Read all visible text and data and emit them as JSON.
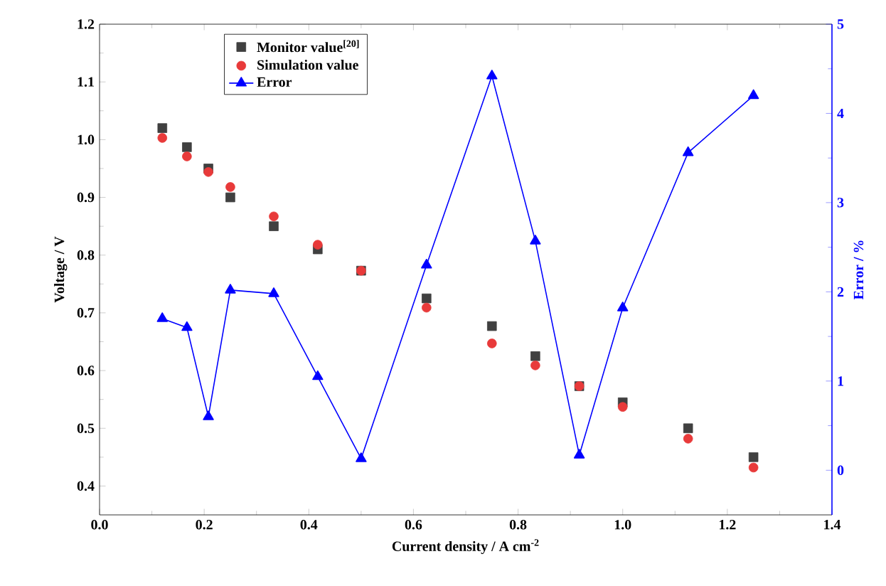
{
  "chart_data": {
    "type": "scatter",
    "xlabel": "Current density / A cm$^{-2}$",
    "ylabel": "Voltage / V",
    "y2label": "Error / %",
    "x": [
      0.12,
      0.167,
      0.208,
      0.25,
      0.333,
      0.417,
      0.5,
      0.625,
      0.75,
      0.833,
      0.917,
      1.0,
      1.125,
      1.25
    ],
    "series": [
      {
        "name": "Monitor value$^{[20]}$",
        "marker": "square",
        "color": "#404040",
        "values": [
          1.02,
          0.987,
          0.95,
          0.9,
          0.85,
          0.81,
          0.773,
          0.725,
          0.677,
          0.625,
          0.573,
          0.545,
          0.5,
          0.45
        ]
      },
      {
        "name": "Simulation value",
        "marker": "circle",
        "color": "#e83a3a",
        "values": [
          1.003,
          0.971,
          0.944,
          0.918,
          0.867,
          0.818,
          0.773,
          0.709,
          0.647,
          0.609,
          0.573,
          0.537,
          0.482,
          0.432
        ]
      },
      {
        "name": "Error",
        "type": "line",
        "marker": "triangle",
        "axis": "y2",
        "color": "#0000ff",
        "values": [
          1.7,
          1.6,
          0.6,
          2.02,
          1.98,
          1.05,
          0.13,
          2.3,
          4.42,
          2.57,
          0.17,
          1.82,
          3.56,
          4.2
        ]
      }
    ],
    "xlim": [
      0,
      1.4
    ],
    "xticks": [
      "0.0",
      0.2,
      0.4,
      0.6,
      0.8,
      "1.0",
      1.2,
      1.4
    ],
    "ylim": [
      0.35,
      1.2
    ],
    "yticks": [
      0.4,
      0.5,
      0.6,
      0.7,
      0.8,
      0.9,
      "1.0",
      1.1,
      1.2
    ],
    "y2lim": [
      -0.5,
      5
    ],
    "y2ticks": [
      0,
      1,
      2,
      3,
      4,
      5
    ],
    "grid": false,
    "legend": "top left"
  }
}
